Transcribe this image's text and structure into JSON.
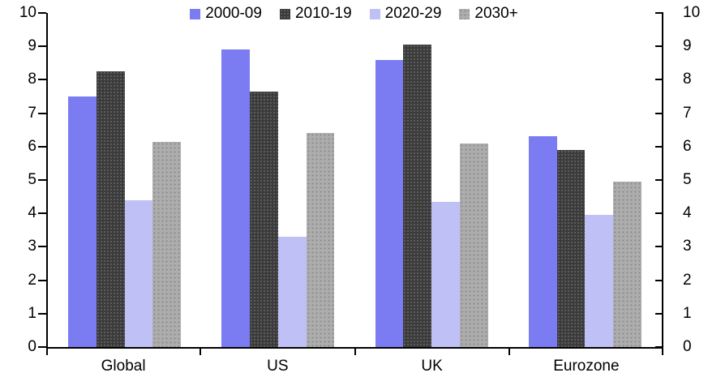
{
  "chart_data": {
    "type": "bar",
    "title": "",
    "categories": [
      "Global",
      "US",
      "UK",
      "Eurozone"
    ],
    "series": [
      {
        "name": "2000-09",
        "color": "#7b7cf2",
        "pattern": "solid",
        "values": [
          7.5,
          8.9,
          8.6,
          6.3
        ]
      },
      {
        "name": "2010-19",
        "color": "#3b3b3b",
        "pattern": "dots",
        "dot_color": "#5f5f5f",
        "values": [
          8.25,
          7.65,
          9.05,
          5.9
        ]
      },
      {
        "name": "2020-29",
        "color": "#bfc0f6",
        "pattern": "solid",
        "values": [
          4.4,
          3.3,
          4.35,
          3.95
        ]
      },
      {
        "name": "2030+",
        "color": "#adadad",
        "pattern": "dots",
        "dot_color": "#8a8a8a",
        "values": [
          6.15,
          6.4,
          6.1,
          4.95
        ]
      }
    ],
    "y_axis_left": {
      "min": 0,
      "max": 10,
      "step": 1,
      "ticks": [
        "0",
        "1",
        "2",
        "3",
        "4",
        "5",
        "6",
        "7",
        "8",
        "9",
        "10"
      ]
    },
    "y_axis_right": {
      "min": 0,
      "max": 10,
      "step": 1,
      "ticks": [
        "0",
        "1",
        "2",
        "3",
        "4",
        "5",
        "6",
        "7",
        "8",
        "9",
        "10"
      ]
    },
    "legend_position": "top",
    "grid": false,
    "axis_color": "#000000",
    "background_color": "#ffffff"
  }
}
